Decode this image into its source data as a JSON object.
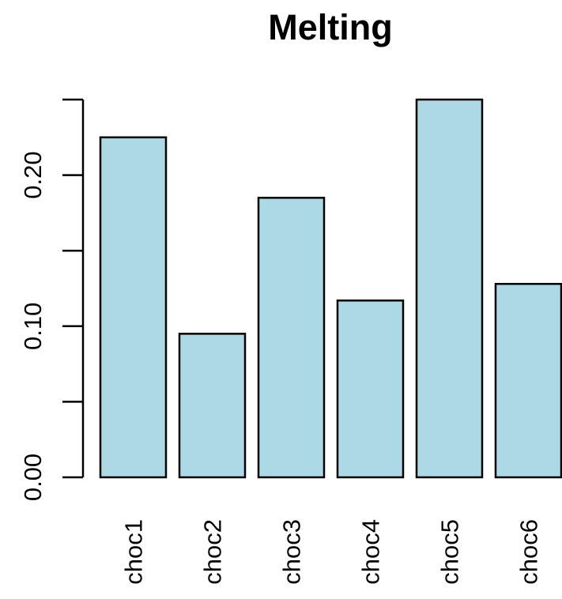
{
  "chart_data": {
    "type": "bar",
    "title": "Melting",
    "xlabel": "",
    "ylabel": "",
    "categories": [
      "choc1",
      "choc2",
      "choc3",
      "choc4",
      "choc5",
      "choc6"
    ],
    "values": [
      0.225,
      0.095,
      0.185,
      0.117,
      0.25,
      0.128
    ],
    "ylim": [
      0,
      0.25
    ],
    "y_ticks": [
      0,
      0.05,
      0.1,
      0.15,
      0.2,
      0.25
    ],
    "y_tick_labels": [
      {
        "value": 0.0,
        "label": "0.00"
      },
      {
        "value": 0.1,
        "label": "0.10"
      },
      {
        "value": 0.2,
        "label": "0.20"
      }
    ],
    "bar_fill": "#add8e6",
    "bar_stroke": "#000000",
    "grid": false,
    "legend": "none"
  }
}
